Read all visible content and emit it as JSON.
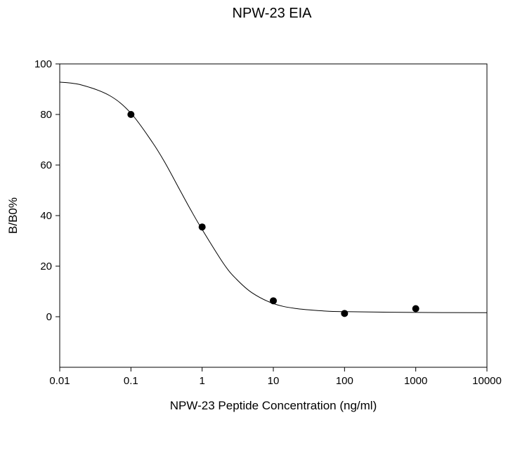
{
  "chart_data": {
    "type": "scatter",
    "title": "NPW-23 EIA",
    "xlabel": "NPW-23 Peptide Concentration (ng/ml)",
    "ylabel": "B/B0%",
    "x_scale": "log",
    "xlim": [
      0.01,
      10000
    ],
    "ylim": [
      -20,
      100
    ],
    "x_ticks": [
      0.01,
      0.1,
      1,
      10,
      100,
      1000,
      10000
    ],
    "x_tick_labels": [
      "0.01",
      "0.1",
      "1",
      "10",
      "100",
      "1000",
      "10000"
    ],
    "y_ticks": [
      0,
      20,
      40,
      60,
      80,
      100
    ],
    "y_tick_labels": [
      "0",
      "20",
      "40",
      "60",
      "80",
      "100"
    ],
    "grid": false,
    "series": [
      {
        "kind": "points",
        "x": [
          0.1,
          1,
          10,
          100,
          1000
        ],
        "y": [
          80,
          35.5,
          6.3,
          1.3,
          3.2
        ],
        "color": "#000000"
      },
      {
        "kind": "fit-curve",
        "x": [
          0.01,
          0.02,
          0.05,
          0.1,
          0.2,
          0.3,
          0.5,
          0.7,
          1,
          2,
          3,
          5,
          10,
          20,
          50,
          100,
          1000,
          10000
        ],
        "y": [
          92.8,
          91.7,
          87.5,
          80.5,
          69.0,
          61.0,
          49.5,
          42.0,
          34.5,
          21.0,
          15.0,
          9.5,
          5.2,
          3.3,
          2.3,
          2.0,
          1.7,
          1.6
        ],
        "color": "#000000"
      }
    ]
  }
}
